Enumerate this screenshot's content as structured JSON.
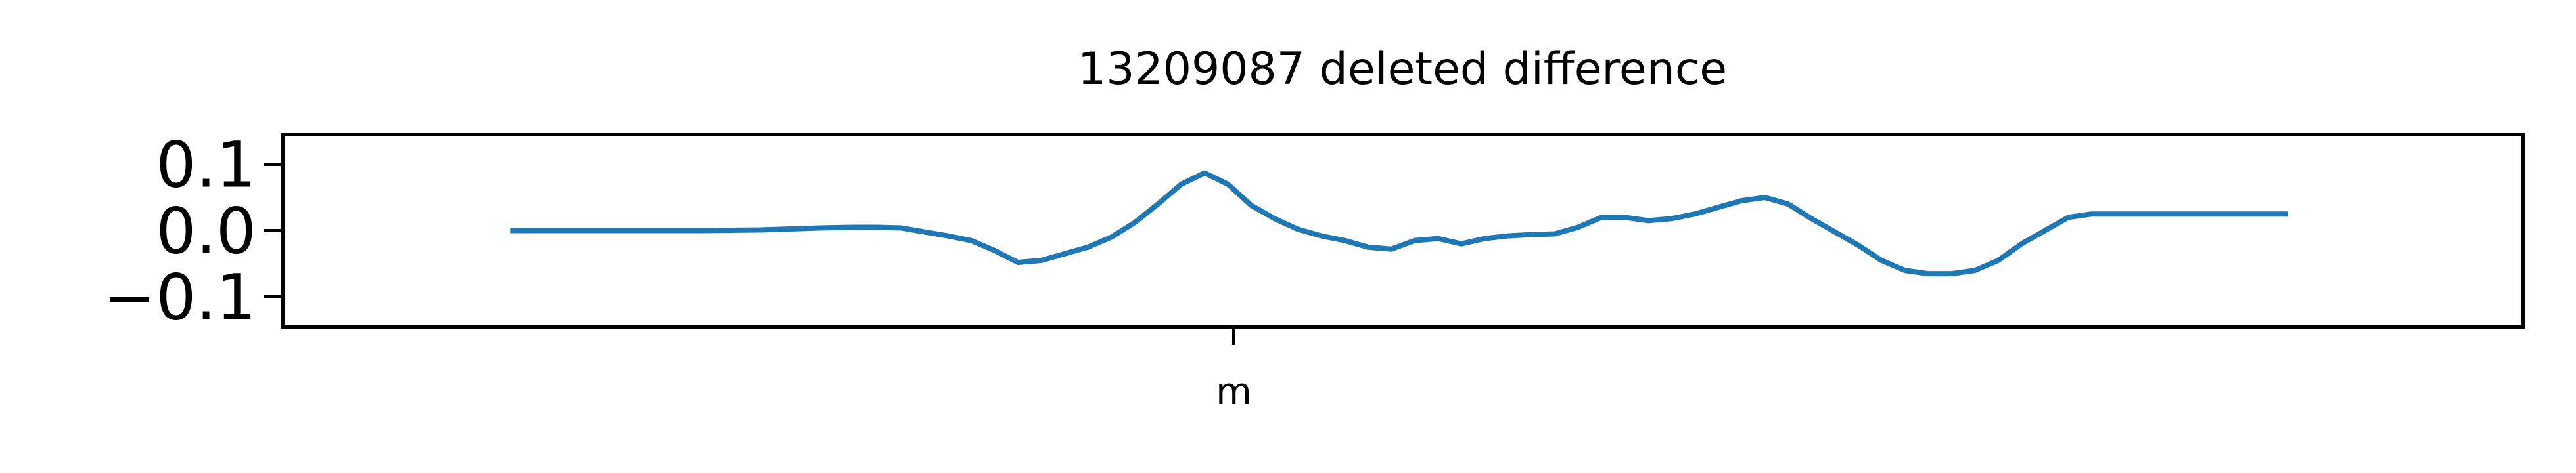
{
  "chart_data": {
    "type": "line",
    "title": "13209087 deleted difference",
    "xlabel": "",
    "ylabel": "",
    "xlim": [
      -0.46,
      1.46
    ],
    "ylim": [
      -0.145,
      0.145
    ],
    "yticks": [
      {
        "value": 0.1,
        "label": "0.1"
      },
      {
        "value": 0.0,
        "label": "0.0"
      },
      {
        "value": -0.1,
        "label": "−0.1"
      }
    ],
    "xticks": [
      {
        "value": 0.355,
        "label": "m"
      }
    ],
    "grid": false,
    "series": [
      {
        "color": "#1f77b4",
        "x": [
          -0.265,
          -0.2,
          -0.15,
          -0.1,
          -0.05,
          0.0,
          0.03,
          0.05,
          0.07,
          0.09,
          0.11,
          0.13,
          0.15,
          0.17,
          0.19,
          0.21,
          0.23,
          0.25,
          0.27,
          0.29,
          0.31,
          0.33,
          0.35,
          0.37,
          0.39,
          0.41,
          0.43,
          0.45,
          0.47,
          0.49,
          0.51,
          0.53,
          0.55,
          0.57,
          0.59,
          0.61,
          0.63,
          0.65,
          0.67,
          0.69,
          0.71,
          0.73,
          0.75,
          0.77,
          0.79,
          0.81,
          0.83,
          0.85,
          0.87,
          0.89,
          0.91,
          0.93,
          0.95,
          0.97,
          0.99,
          1.01,
          1.03,
          1.05,
          1.07,
          1.09,
          1.11,
          1.13,
          1.15,
          1.17,
          1.19,
          1.21,
          1.23,
          1.25,
          1.258
        ],
        "y": [
          0.0,
          0.0,
          0.0,
          0.0,
          0.001,
          0.004,
          0.005,
          0.005,
          0.004,
          -0.002,
          -0.008,
          -0.015,
          -0.03,
          -0.048,
          -0.045,
          -0.035,
          -0.025,
          -0.01,
          0.012,
          0.04,
          0.07,
          0.087,
          0.07,
          0.038,
          0.018,
          0.002,
          -0.008,
          -0.015,
          -0.025,
          -0.028,
          -0.015,
          -0.012,
          -0.02,
          -0.012,
          -0.008,
          -0.006,
          -0.005,
          0.005,
          0.02,
          0.02,
          0.015,
          0.018,
          0.025,
          0.035,
          0.045,
          0.05,
          0.04,
          0.018,
          -0.002,
          -0.022,
          -0.045,
          -0.06,
          -0.065,
          -0.065,
          -0.06,
          -0.045,
          -0.02,
          0.0,
          0.02,
          0.025,
          0.025,
          0.025,
          0.025,
          0.025,
          0.025,
          0.025,
          0.025,
          0.025,
          0.025
        ]
      }
    ]
  }
}
